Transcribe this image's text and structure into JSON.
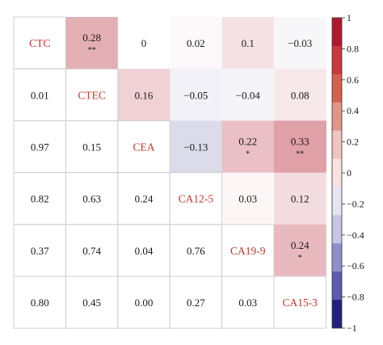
{
  "chart_data": {
    "type": "heatmap",
    "variables": [
      "CTC",
      "CTEC",
      "CEA",
      "CA12-5",
      "CA19-9",
      "CA15-3"
    ],
    "upper_triangle_values": [
      [
        null,
        0.28,
        0,
        0.02,
        0.1,
        -0.03
      ],
      [
        null,
        null,
        0.16,
        -0.05,
        -0.04,
        0.08
      ],
      [
        null,
        null,
        null,
        -0.13,
        0.22,
        0.33
      ],
      [
        null,
        null,
        null,
        null,
        0.03,
        0.12
      ],
      [
        null,
        null,
        null,
        null,
        null,
        0.24
      ],
      [
        null,
        null,
        null,
        null,
        null,
        null
      ]
    ],
    "lower_triangle_values": [
      [
        null,
        null,
        null,
        null,
        null,
        null
      ],
      [
        0.01,
        null,
        null,
        null,
        null,
        null
      ],
      [
        0.97,
        0.15,
        null,
        null,
        null,
        null
      ],
      [
        0.82,
        0.63,
        0.24,
        null,
        null,
        null
      ],
      [
        0.37,
        0.74,
        0.04,
        0.76,
        null,
        null
      ],
      [
        0.8,
        0.45,
        0.0,
        0.27,
        0.03,
        null
      ]
    ],
    "upper_display_text": [
      [
        "",
        "0.28",
        "0",
        "0.02",
        "0.1",
        "−0.03"
      ],
      [
        "",
        "",
        "0.16",
        "−0.05",
        "−0.04",
        "0.08"
      ],
      [
        "",
        "",
        "",
        "−0.13",
        "0.22",
        "0.33"
      ],
      [
        "",
        "",
        "",
        "",
        "0.03",
        "0.12"
      ],
      [
        "",
        "",
        "",
        "",
        "",
        "0.24"
      ],
      [
        "",
        "",
        "",
        "",
        "",
        ""
      ]
    ],
    "lower_display_text": [
      [
        "",
        "",
        "",
        "",
        "",
        ""
      ],
      [
        "0.01",
        "",
        "",
        "",
        "",
        ""
      ],
      [
        "0.97",
        "0.15",
        "",
        "",
        "",
        ""
      ],
      [
        "0.82",
        "0.63",
        "0.24",
        "",
        "",
        ""
      ],
      [
        "0.37",
        "0.74",
        "0.04",
        "0.76",
        "",
        ""
      ],
      [
        "0.80",
        "0.45",
        "0.00",
        "0.27",
        "0.03",
        ""
      ]
    ],
    "significance": [
      [
        "",
        "**",
        "",
        "",
        "",
        ""
      ],
      [
        "",
        "",
        "",
        "",
        "",
        ""
      ],
      [
        "",
        "",
        "",
        "",
        "*",
        "**"
      ],
      [
        "",
        "",
        "",
        "",
        "",
        ""
      ],
      [
        "",
        "",
        "",
        "",
        "",
        "*"
      ],
      [
        "",
        "",
        "",
        "",
        "",
        ""
      ]
    ],
    "color_scale": {
      "min": -1,
      "max": 1,
      "ticks": [
        1,
        0.8,
        0.6,
        0.4,
        0.2,
        0,
        -0.2,
        -0.4,
        -0.6,
        -0.8,
        -1
      ],
      "tick_labels": [
        "1",
        "0.8",
        "0.6",
        "0.4",
        "0.2",
        "0",
        "−0.2",
        "−0.4",
        "−0.6",
        "−0.8",
        "−1"
      ],
      "colors": [
        "#b2182b",
        "#c9383a",
        "#d6604d",
        "#e39489",
        "#f0c5bf",
        "#f9e3e1",
        "#e5e5f4",
        "#c5c5e6",
        "#8f8fcb",
        "#5c5caf",
        "#202080"
      ]
    },
    "diagonal_color": "#c0392b",
    "grid": true
  }
}
